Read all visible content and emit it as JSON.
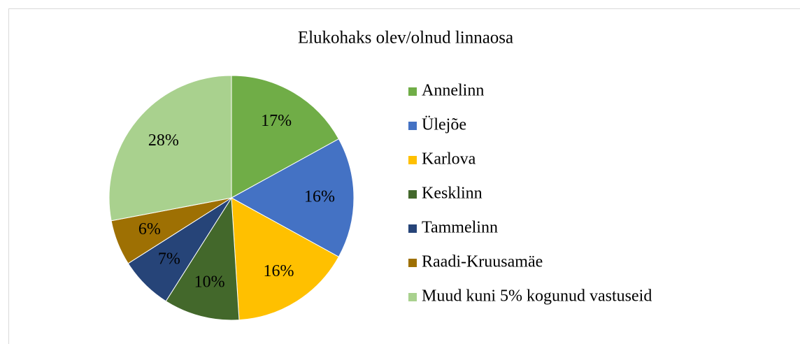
{
  "chart_data": {
    "type": "pie",
    "title": "Elukohaks olev/olnud linnaosa",
    "categories": [
      "Annelinn",
      "Ülejõe",
      "Karlova",
      "Kesklinn",
      "Tammelinn",
      "Raadi-Kruusamäe",
      "Muud kuni 5% kogunud vastuseid"
    ],
    "values": [
      17,
      16,
      16,
      10,
      7,
      6,
      28
    ],
    "value_labels": [
      "17%",
      "16%",
      "16%",
      "10%",
      "7%",
      "6%",
      "28%"
    ],
    "colors": [
      "#70ad47",
      "#4472c4",
      "#ffc000",
      "#43682b",
      "#264478",
      "#9e7003",
      "#a9d18e"
    ],
    "legend": "right"
  }
}
